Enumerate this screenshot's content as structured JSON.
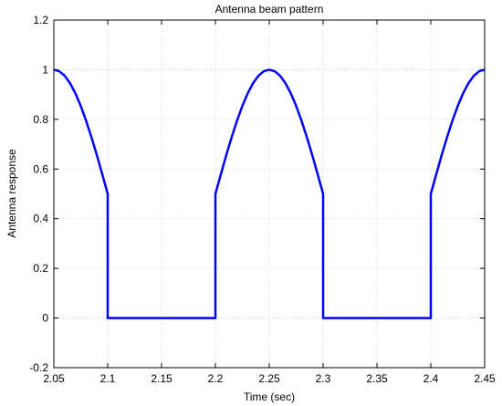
{
  "chart_data": {
    "type": "line",
    "title": "Antenna beam pattern",
    "xlabel": "Time (sec)",
    "ylabel": "Antenna response",
    "xlim": [
      2.05,
      2.45
    ],
    "ylim": [
      -0.2,
      1.2
    ],
    "xticks": [
      2.05,
      2.1,
      2.15,
      2.2,
      2.25,
      2.3,
      2.35,
      2.4,
      2.45
    ],
    "xtick_labels": [
      "2.05",
      "2.1",
      "2.15",
      "2.2",
      "2.25",
      "2.3",
      "2.35",
      "2.4",
      "2.45"
    ],
    "yticks": [
      -0.2,
      0,
      0.2,
      0.4,
      0.6,
      0.8,
      1,
      1.2
    ],
    "ytick_labels": [
      "-0.2",
      "0",
      "0.2",
      "0.4",
      "0.6",
      "0.8",
      "1",
      "1.2"
    ],
    "grid": true,
    "series": [
      {
        "color": "#0000ff",
        "x": [
          2.05,
          2.055,
          2.06,
          2.065,
          2.07,
          2.075,
          2.08,
          2.085,
          2.09,
          2.095,
          2.1,
          2.1,
          2.15,
          2.2,
          2.2,
          2.205,
          2.21,
          2.215,
          2.22,
          2.225,
          2.23,
          2.235,
          2.24,
          2.245,
          2.25,
          2.255,
          2.26,
          2.265,
          2.27,
          2.275,
          2.28,
          2.285,
          2.29,
          2.295,
          2.3,
          2.3,
          2.35,
          2.4,
          2.4,
          2.405,
          2.41,
          2.415,
          2.42,
          2.425,
          2.43,
          2.435,
          2.44,
          2.445,
          2.45
        ],
        "y": [
          1.0,
          0.994,
          0.976,
          0.946,
          0.905,
          0.854,
          0.794,
          0.727,
          0.655,
          0.578,
          0.5,
          0.0,
          0.0,
          0.0,
          0.5,
          0.578,
          0.655,
          0.727,
          0.794,
          0.854,
          0.905,
          0.946,
          0.976,
          0.994,
          1.0,
          0.994,
          0.976,
          0.946,
          0.905,
          0.854,
          0.794,
          0.727,
          0.655,
          0.578,
          0.5,
          0.0,
          0.0,
          0.0,
          0.5,
          0.578,
          0.655,
          0.727,
          0.794,
          0.854,
          0.905,
          0.946,
          0.976,
          0.994,
          1.0
        ]
      }
    ]
  }
}
